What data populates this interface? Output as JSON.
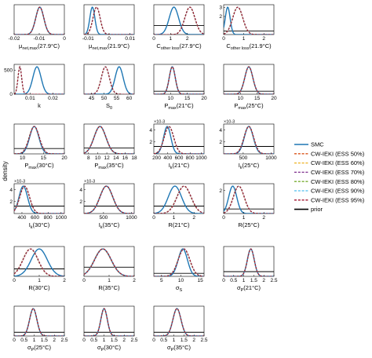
{
  "figure": {
    "ylabel": "density",
    "legend": {
      "placement": "right",
      "entries": [
        {
          "label": "SMC",
          "color": "#1f77b4",
          "dash": "solid"
        },
        {
          "label": "CW-IEKI (ESS 50%)",
          "color": "#d95319",
          "dash": "dashed"
        },
        {
          "label": "CW-IEKI (ESS 60%)",
          "color": "#edb120",
          "dash": "dashed"
        },
        {
          "label": "CW-IEKI (ESS 70%)",
          "color": "#7e2f8e",
          "dash": "dashed"
        },
        {
          "label": "CW-IEKI (ESS 80%)",
          "color": "#77ac30",
          "dash": "dashed"
        },
        {
          "label": "CW-IEKI (ESS 90%)",
          "color": "#4dbeee",
          "dash": "dashed"
        },
        {
          "label": "CW-IEKI (ESS 95%)",
          "color": "#a2142f",
          "dash": "dashed"
        },
        {
          "label": "prior",
          "color": "#000000",
          "dash": "solid"
        }
      ]
    }
  },
  "chart_data": [
    {
      "type": "line",
      "xlabel": "μnet,max(27.9°C)",
      "xticks": [
        "-0.02",
        "-0.01",
        "0"
      ],
      "xlim": [
        -0.02,
        0.0
      ],
      "yticks": [],
      "ylim": [
        0,
        1
      ],
      "y_multiplier": "",
      "series": {
        "SMC": {
          "mean": -0.0098,
          "sd": 0.0016
        },
        "CW-IEKI": {
          "mean": -0.0098,
          "sd": 0.0016
        }
      },
      "prior": null
    },
    {
      "type": "line",
      "xlabel": "μnet,max(21.9°C)",
      "xticks": [
        "-0.01",
        "0",
        "0.01"
      ],
      "xlim": [
        -0.012,
        0.012
      ],
      "yticks": [],
      "ylim": [
        0,
        1
      ],
      "y_multiplier": "",
      "series": {
        "SMC": {
          "mean": -0.008,
          "sd": 0.0012
        },
        "CW-IEKI": {
          "mean": -0.006,
          "sd": 0.0017
        }
      },
      "prior": null
    },
    {
      "type": "line",
      "xlabel": "Cother loss(27.9°C)",
      "xticks": [
        "0",
        "1",
        "2"
      ],
      "xlim": [
        0,
        3
      ],
      "yticks": [],
      "ylim": [
        0,
        1.1
      ],
      "y_multiplier": "",
      "series": {
        "SMC": {
          "mean": 1.2,
          "sd": 0.28
        },
        "CW-IEKI": {
          "mean": 2.15,
          "sd": 0.3
        }
      },
      "prior": {
        "level": 0.33
      }
    },
    {
      "type": "line",
      "xlabel": "Cother loss(21.9°C)",
      "xticks": [
        "0",
        "1",
        "2"
      ],
      "xlim": [
        0,
        2.5
      ],
      "yticks": [
        "2",
        "3"
      ],
      "ylim": [
        0,
        3.3
      ],
      "y_multiplier": "",
      "series": {
        "SMC": {
          "mean": 0.2,
          "sd": 0.12
        },
        "CW-IEKI": {
          "mean": 0.7,
          "sd": 0.25
        }
      },
      "prior": {
        "level": 0.4
      }
    },
    {
      "type": "line",
      "xlabel": "k",
      "xticks": [
        "0.01",
        "0.02"
      ],
      "xlim": [
        0.003,
        0.025
      ],
      "yticks": [
        "0",
        "500"
      ],
      "ylim": [
        0,
        620
      ],
      "y_multiplier": "",
      "series": {
        "SMC": {
          "mean": 0.013,
          "sd": 0.0018
        },
        "CW-IEKI": {
          "mean": 0.0055,
          "sd": 0.0008
        }
      },
      "prior": null
    },
    {
      "type": "line",
      "xlabel": "S0",
      "xticks": [
        "45",
        "50",
        "55",
        "60"
      ],
      "xlim": [
        42,
        62
      ],
      "yticks": [],
      "ylim": [
        0,
        1
      ],
      "y_multiplier": "",
      "series": {
        "SMC": {
          "mean": 56,
          "sd": 1.6
        },
        "CW-IEKI": {
          "mean": 50.5,
          "sd": 1.6
        }
      },
      "prior": null
    },
    {
      "type": "line",
      "xlabel": "Pmax(21°C)",
      "xticks": [
        "10",
        "15",
        "20"
      ],
      "xlim": [
        5,
        20
      ],
      "yticks": [],
      "ylim": [
        0,
        1
      ],
      "y_multiplier": "",
      "series": {
        "SMC": {
          "mean": 10.5,
          "sd": 0.9
        },
        "CW-IEKI": {
          "mean": 10.5,
          "sd": 0.9
        }
      },
      "prior": {
        "level": 0.1
      }
    },
    {
      "type": "line",
      "xlabel": "Pmax(25°C)",
      "xticks": [
        "10",
        "15",
        "20"
      ],
      "xlim": [
        5,
        20
      ],
      "yticks": [],
      "ylim": [
        0,
        1
      ],
      "y_multiplier": "",
      "series": {
        "SMC": {
          "mean": 12.5,
          "sd": 1.2
        },
        "CW-IEKI": {
          "mean": 12.5,
          "sd": 1.2
        }
      },
      "prior": {
        "level": 0.1
      }
    },
    {
      "type": "line",
      "xlabel": "Pmax(30°C)",
      "xticks": [
        "10",
        "15",
        "20"
      ],
      "xlim": [
        8,
        20
      ],
      "yticks": [],
      "ylim": [
        0,
        1
      ],
      "y_multiplier": "",
      "series": {
        "SMC": {
          "mean": 12.8,
          "sd": 1.1
        },
        "CW-IEKI": {
          "mean": 12.8,
          "sd": 1.2
        }
      },
      "prior": {
        "level": 0.18
      }
    },
    {
      "type": "line",
      "xlabel": "Pmax(35°C)",
      "xticks": [
        "8",
        "10",
        "12",
        "14",
        "16",
        "18"
      ],
      "xlim": [
        7,
        18
      ],
      "yticks": [],
      "ylim": [
        0,
        1
      ],
      "y_multiplier": "",
      "series": {
        "SMC": {
          "mean": 10.5,
          "sd": 1.3
        },
        "CW-IEKI": {
          "mean": 10.5,
          "sd": 1.3
        }
      },
      "prior": {
        "level": 0.2
      }
    },
    {
      "type": "line",
      "xlabel": "Ik(21°C)",
      "xticks": [
        "200",
        "400",
        "600",
        "800",
        "1000"
      ],
      "xlim": [
        150,
        1050
      ],
      "yticks": [
        "2",
        "4"
      ],
      "ylim": [
        0,
        5
      ],
      "y_multiplier": "×10-3",
      "series": {
        "SMC": {
          "mean": 390,
          "sd": 65
        },
        "CW-IEKI": {
          "mean": 420,
          "sd": 85
        }
      },
      "prior": {
        "level": 1.25
      }
    },
    {
      "type": "line",
      "xlabel": "Ik(25°C)",
      "xticks": [
        "500",
        "1000"
      ],
      "xlim": [
        150,
        1050
      ],
      "yticks": [
        "2",
        "4"
      ],
      "ylim": [
        0,
        5
      ],
      "y_multiplier": "×10-3",
      "series": {
        "SMC": {
          "mean": 600,
          "sd": 80
        },
        "CW-IEKI": {
          "mean": 600,
          "sd": 85
        }
      },
      "prior": {
        "level": 1.25
      }
    },
    {
      "type": "line",
      "xlabel": "Ik(30°C)",
      "xticks": [
        "400",
        "600",
        "800",
        "1000"
      ],
      "xlim": [
        280,
        1050
      ],
      "yticks": [
        "2",
        "4"
      ],
      "ylim": [
        0,
        5
      ],
      "y_multiplier": "×10-3",
      "series": {
        "SMC": {
          "mean": 420,
          "sd": 65
        },
        "CW-IEKI": {
          "mean": 440,
          "sd": 75
        }
      },
      "prior": {
        "level": 1.25
      }
    },
    {
      "type": "line",
      "xlabel": "Ik(35°C)",
      "xticks": [
        "500",
        "1000"
      ],
      "xlim": [
        150,
        1050
      ],
      "yticks": [
        "2",
        "4"
      ],
      "ylim": [
        0,
        5
      ],
      "y_multiplier": "×10-3",
      "series": {
        "SMC": {
          "mean": 550,
          "sd": 115
        },
        "CW-IEKI": {
          "mean": 550,
          "sd": 115
        }
      },
      "prior": {
        "level": 1.25
      }
    },
    {
      "type": "line",
      "xlabel": "R(21°C)",
      "xticks": [
        "0",
        "1",
        "2"
      ],
      "xlim": [
        0,
        2.5
      ],
      "yticks": [],
      "ylim": [
        0,
        1.6
      ],
      "y_multiplier": "",
      "series": {
        "SMC": {
          "mean": 1.05,
          "sd": 0.33
        },
        "CW-IEKI": {
          "mean": 1.5,
          "sd": 0.35
        }
      },
      "prior": {
        "level": 0.4
      }
    },
    {
      "type": "line",
      "xlabel": "R(25°C)",
      "xticks": [
        "0",
        "1",
        "2"
      ],
      "xlim": [
        0,
        2.5
      ],
      "yticks": [
        "2"
      ],
      "ylim": [
        0,
        2.6
      ],
      "y_multiplier": "",
      "series": {
        "SMC": {
          "mean": 0.45,
          "sd": 0.2
        },
        "CW-IEKI": {
          "mean": 0.75,
          "sd": 0.27
        }
      },
      "prior": {
        "level": 0.4
      }
    },
    {
      "type": "line",
      "xlabel": "R(30°C)",
      "xticks": [
        "0",
        "1",
        "2"
      ],
      "xlim": [
        0,
        2
      ],
      "yticks": [],
      "ylim": [
        0,
        1.6
      ],
      "y_multiplier": "",
      "series": {
        "SMC": {
          "mean": 1.0,
          "sd": 0.32
        },
        "CW-IEKI": {
          "mean": 0.65,
          "sd": 0.3
        }
      },
      "prior": {
        "level": 0.4
      }
    },
    {
      "type": "line",
      "xlabel": "R(35°C)",
      "xticks": [
        "0",
        "1",
        "2"
      ],
      "xlim": [
        0,
        2
      ],
      "yticks": [],
      "ylim": [
        0,
        1.3
      ],
      "y_multiplier": "",
      "series": {
        "SMC": {
          "mean": 0.75,
          "sd": 0.33
        },
        "CW-IEKI": {
          "mean": 0.75,
          "sd": 0.33
        }
      },
      "prior": {
        "level": 0.4
      }
    },
    {
      "type": "line",
      "xlabel": "σS",
      "xticks": [
        "5",
        "10",
        "15"
      ],
      "xlim": [
        3,
        16
      ],
      "yticks": [],
      "ylim": [
        0,
        1
      ],
      "y_multiplier": "",
      "series": {
        "SMC": {
          "mean": 10.5,
          "sd": 1.2
        },
        "CW-IEKI": {
          "mean": 10.8,
          "sd": 1.5
        }
      },
      "prior": {
        "level": 0.1
      }
    },
    {
      "type": "line",
      "xlabel": "σP(21°C)",
      "xticks": [
        "0",
        "0.5",
        "1",
        "1.5",
        "2",
        "2.5"
      ],
      "xlim": [
        0,
        2.5
      ],
      "yticks": [],
      "ylim": [
        0,
        3.8
      ],
      "y_multiplier": "",
      "series": {
        "SMC": {
          "mean": 1.35,
          "sd": 0.17
        },
        "CW-IEKI": {
          "mean": 1.35,
          "sd": 0.17
        }
      },
      "prior": {
        "level": 0.6
      }
    },
    {
      "type": "line",
      "xlabel": "σP(25°C)",
      "xticks": [
        "0",
        "0.5",
        "1",
        "1.5",
        "2",
        "2.5"
      ],
      "xlim": [
        0,
        2.5
      ],
      "yticks": [],
      "ylim": [
        0,
        3.2
      ],
      "y_multiplier": "",
      "series": {
        "SMC": {
          "mean": 0.95,
          "sd": 0.18
        },
        "CW-IEKI": {
          "mean": 0.95,
          "sd": 0.18
        }
      },
      "prior": {
        "level": 0.4
      }
    },
    {
      "type": "line",
      "xlabel": "σP(30°C)",
      "xticks": [
        "0",
        "0.5",
        "1",
        "1.5",
        "2",
        "2.5"
      ],
      "xlim": [
        0,
        2.5
      ],
      "yticks": [],
      "ylim": [
        0,
        3.2
      ],
      "y_multiplier": "",
      "series": {
        "SMC": {
          "mean": 1.0,
          "sd": 0.16
        },
        "CW-IEKI": {
          "mean": 1.0,
          "sd": 0.16
        }
      },
      "prior": {
        "level": 0.4
      }
    },
    {
      "type": "line",
      "xlabel": "σP(35°C)",
      "xticks": [
        "0",
        "0.5",
        "1",
        "1.5",
        "2",
        "2.5"
      ],
      "xlim": [
        0,
        2.5
      ],
      "yticks": [],
      "ylim": [
        0,
        3.2
      ],
      "y_multiplier": "",
      "series": {
        "SMC": {
          "mean": 1.15,
          "sd": 0.2
        },
        "CW-IEKI": {
          "mean": 1.15,
          "sd": 0.2
        }
      },
      "prior": {
        "level": 0.4
      }
    }
  ]
}
